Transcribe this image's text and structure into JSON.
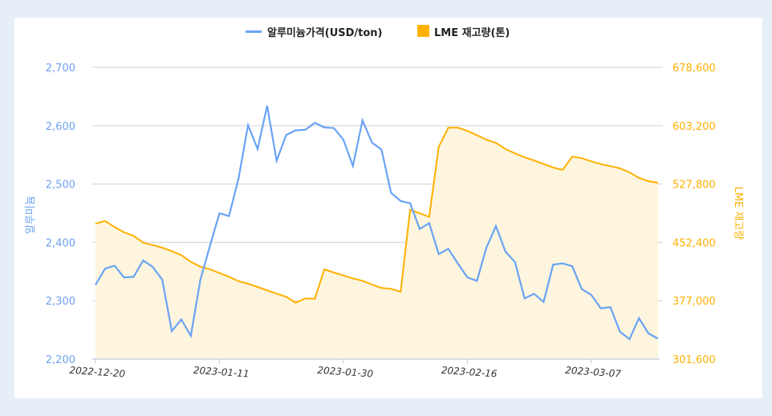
{
  "chart_data": {
    "type": "line+area",
    "legend": {
      "placement": "top-center",
      "entries": [
        "알루미늄가격(USD/ton)",
        "LME 재고량(톤)"
      ]
    },
    "y_left": {
      "label": "알루미늄",
      "range": [
        2200,
        2700
      ],
      "ticks": [
        "2,200",
        "2,300",
        "2,400",
        "2,500",
        "2,600",
        "2,700"
      ],
      "color": "#6ea1f0"
    },
    "y_right": {
      "label": "LME 재고량",
      "range": [
        301600,
        678600
      ],
      "ticks": [
        "301,600",
        "377,000",
        "452,400",
        "527,800",
        "603,200",
        "678,600"
      ],
      "color": "#ffb000"
    },
    "x_tick_labels": [
      "2022-12-20",
      "2023-01-11",
      "2023-01-30",
      "2023-02-16",
      "2023-03-07"
    ],
    "grid": true,
    "x": [
      "2022-12-20",
      "2022-12-21",
      "2022-12-22",
      "2022-12-23",
      "2022-12-28",
      "2022-12-29",
      "2022-12-30",
      "2023-01-03",
      "2023-01-04",
      "2023-01-05",
      "2023-01-06",
      "2023-01-09",
      "2023-01-10",
      "2023-01-11",
      "2023-01-12",
      "2023-01-13",
      "2023-01-16",
      "2023-01-17",
      "2023-01-18",
      "2023-01-19",
      "2023-01-20",
      "2023-01-23",
      "2023-01-24",
      "2023-01-25",
      "2023-01-26",
      "2023-01-27",
      "2023-01-30",
      "2023-01-31",
      "2023-02-01",
      "2023-02-02",
      "2023-02-03",
      "2023-02-06",
      "2023-02-07",
      "2023-02-08",
      "2023-02-09",
      "2023-02-10",
      "2023-02-13",
      "2023-02-14",
      "2023-02-15",
      "2023-02-16",
      "2023-02-17",
      "2023-02-20",
      "2023-02-21",
      "2023-02-22",
      "2023-02-23",
      "2023-02-24",
      "2023-02-27",
      "2023-02-28",
      "2023-03-01",
      "2023-03-02",
      "2023-03-03",
      "2023-03-06",
      "2023-03-07",
      "2023-03-08",
      "2023-03-09",
      "2023-03-10",
      "2023-03-13",
      "2023-03-14",
      "2023-03-15",
      "2023-03-16"
    ],
    "series": [
      {
        "name": "알루미늄가격(USD/ton)",
        "type": "line",
        "axis": "left",
        "color": "#6aa3f5",
        "values": [
          2327,
          2355,
          2360,
          2340,
          2341,
          2369,
          2358,
          2336,
          2248,
          2268,
          2240,
          2336,
          2394,
          2450,
          2445,
          2509,
          2601,
          2560,
          2634,
          2540,
          2584,
          2592,
          2593,
          2605,
          2597,
          2596,
          2576,
          2531,
          2609,
          2571,
          2559,
          2485,
          2471,
          2467,
          2423,
          2433,
          2380,
          2389,
          2364,
          2340,
          2334,
          2391,
          2428,
          2384,
          2366,
          2304,
          2312,
          2298,
          2362,
          2364,
          2359,
          2320,
          2310,
          2287,
          2289,
          2247,
          2234,
          2270,
          2244,
          2235
        ]
      },
      {
        "name": "LME 재고량(톤)",
        "type": "area",
        "axis": "right",
        "color": "#ffb000",
        "fill": "#fdf5dd",
        "values": [
          476600,
          480100,
          472200,
          465300,
          460800,
          452100,
          449000,
          445600,
          441100,
          435900,
          427200,
          421000,
          417600,
          412700,
          408000,
          402400,
          399000,
          394800,
          390400,
          386200,
          382100,
          374400,
          380000,
          379600,
          417600,
          413500,
          409600,
          405900,
          402800,
          397900,
          393500,
          392400,
          388600,
          494600,
          490100,
          485300,
          575800,
          600600,
          600600,
          596500,
          590900,
          585100,
          580900,
          573000,
          567500,
          562300,
          558200,
          553600,
          549100,
          546000,
          563300,
          561300,
          557100,
          553600,
          550900,
          548100,
          542900,
          535700,
          531500,
          529500
        ]
      }
    ]
  }
}
